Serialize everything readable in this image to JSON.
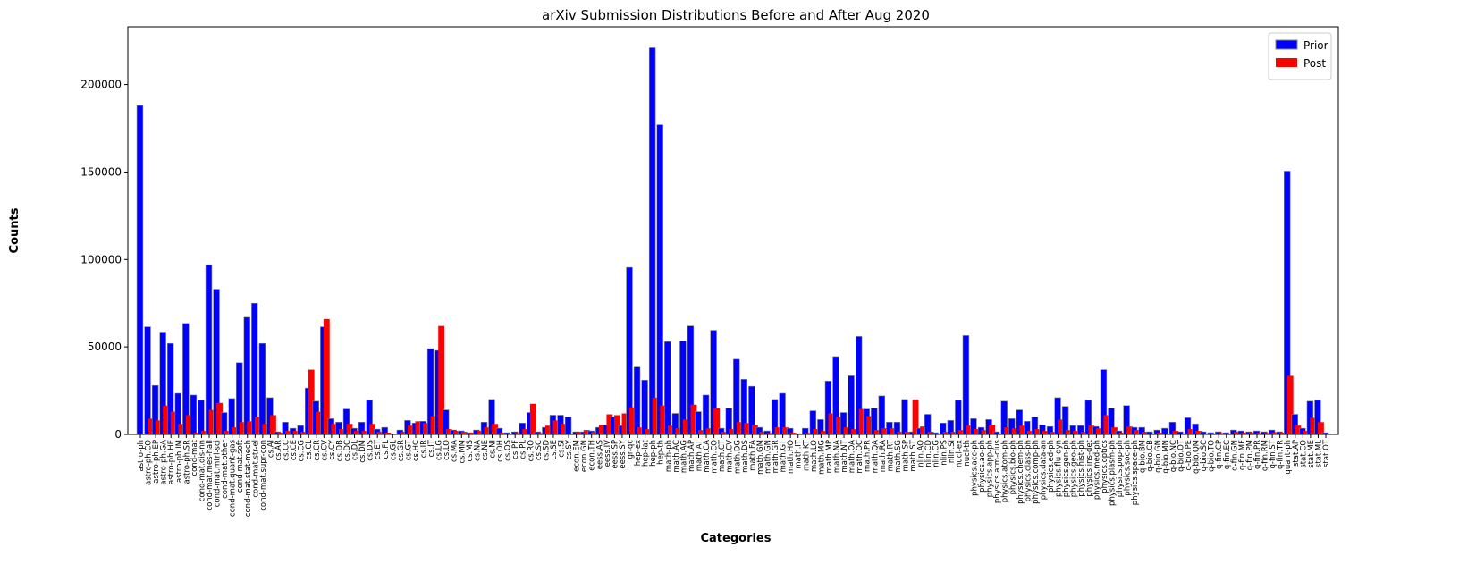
{
  "chart_data": {
    "type": "bar",
    "title": "arXiv Submission Distributions Before and After Aug 2020",
    "x_label": "Categories",
    "y_label": "Counts",
    "categories": [
      "astro-ph",
      "astro-ph.CO",
      "astro-ph.EP",
      "astro-ph.GA",
      "astro-ph.HE",
      "astro-ph.IM",
      "astro-ph.SR",
      "cond-mat",
      "cond-mat.dis-nn",
      "cond-mat.mes-hall",
      "cond-mat.mtrl-sci",
      "cond-mat.other",
      "cond-mat.quant-gas",
      "cond-mat.soft",
      "cond-mat.stat-mech",
      "cond-mat.str-el",
      "cond-mat.supr-con",
      "cs.AI",
      "cs.AR",
      "cs.CC",
      "cs.CE",
      "cs.CG",
      "cs.CL",
      "cs.CR",
      "cs.CV",
      "cs.CY",
      "cs.DB",
      "cs.DC",
      "cs.DL",
      "cs.DM",
      "cs.DS",
      "cs.ET",
      "cs.FL",
      "cs.GL",
      "cs.GR",
      "cs.GT",
      "cs.HC",
      "cs.IR",
      "cs.IT",
      "cs.LG",
      "cs.LO",
      "cs.MA",
      "cs.MM",
      "cs.MS",
      "cs.NA",
      "cs.NE",
      "cs.NI",
      "cs.OH",
      "cs.OS",
      "cs.PF",
      "cs.PL",
      "cs.RO",
      "cs.SC",
      "cs.SD",
      "cs.SE",
      "cs.SI",
      "cs.SY",
      "econ.EM",
      "econ.GN",
      "econ.TH",
      "eess.AS",
      "eess.IV",
      "eess.SP",
      "eess.SY",
      "gr-qc",
      "hep-ex",
      "hep-lat",
      "hep-ph",
      "hep-th",
      "math-ph",
      "math.AC",
      "math.AG",
      "math.AP",
      "math.AT",
      "math.CA",
      "math.CO",
      "math.CT",
      "math.CV",
      "math.DG",
      "math.DS",
      "math.FA",
      "math.GM",
      "math.GN",
      "math.GR",
      "math.GT",
      "math.HO",
      "math.IT",
      "math.KT",
      "math.LO",
      "math.MG",
      "math.MP",
      "math.NA",
      "math.NT",
      "math.OA",
      "math.OC",
      "math.PR",
      "math.QA",
      "math.RA",
      "math.RT",
      "math.SG",
      "math.SP",
      "math.ST",
      "nlin.AO",
      "nlin.CD",
      "nlin.CG",
      "nlin.PS",
      "nlin.SI",
      "nucl-ex",
      "nucl-th",
      "physics.acc-ph",
      "physics.ao-ph",
      "physics.app-ph",
      "physics.atm-clus",
      "physics.atom-ph",
      "physics.bio-ph",
      "physics.chem-ph",
      "physics.class-ph",
      "physics.comp-ph",
      "physics.data-an",
      "physics.ed-ph",
      "physics.flu-dyn",
      "physics.gen-ph",
      "physics.geo-ph",
      "physics.hist-ph",
      "physics.ins-det",
      "physics.med-ph",
      "physics.optics",
      "physics.plasm-ph",
      "physics.pop-ph",
      "physics.soc-ph",
      "physics.space-ph",
      "q-bio.BM",
      "q-bio.CB",
      "q-bio.GN",
      "q-bio.MN",
      "q-bio.NC",
      "q-bio.OT",
      "q-bio.PE",
      "q-bio.QM",
      "q-bio.SC",
      "q-bio.TO",
      "q-fin.CP",
      "q-fin.EC",
      "q-fin.GN",
      "q-fin.MF",
      "q-fin.PM",
      "q-fin.PR",
      "q-fin.RM",
      "q-fin.ST",
      "q-fin.TR",
      "quant-ph",
      "stat.AP",
      "stat.CO",
      "stat.ME",
      "stat.ML",
      "stat.OT"
    ],
    "series": [
      {
        "name": "Prior",
        "color": "#0000ff",
        "values": [
          188000,
          61500,
          28000,
          58500,
          52000,
          23500,
          63500,
          22500,
          19500,
          97000,
          83000,
          12500,
          20500,
          41000,
          67000,
          75000,
          52000,
          21000,
          1500,
          7000,
          3500,
          5000,
          26500,
          19000,
          61500,
          9000,
          7000,
          14500,
          3500,
          7000,
          19500,
          3000,
          4000,
          300,
          2500,
          8000,
          6500,
          7500,
          49000,
          48000,
          14000,
          2500,
          2000,
          1000,
          2500,
          7000,
          20000,
          3500,
          1000,
          1500,
          6500,
          12500,
          1500,
          4000,
          11000,
          11000,
          10000,
          1500,
          1500,
          2000,
          4000,
          5500,
          10000,
          5000,
          95500,
          38500,
          31000,
          221000,
          177000,
          53000,
          12000,
          53500,
          62000,
          13000,
          22500,
          59500,
          3500,
          15000,
          43000,
          31500,
          27500,
          4000,
          2000,
          20000,
          23500,
          3500,
          500,
          3500,
          13500,
          8500,
          30500,
          44500,
          12500,
          33500,
          56000,
          14500,
          15000,
          22000,
          7000,
          7000,
          20000,
          1500,
          3500,
          11500,
          1000,
          6500,
          8000,
          19500,
          56500,
          9000,
          4000,
          8500,
          1500,
          19000,
          9000,
          14000,
          7500,
          10000,
          5500,
          4500,
          21000,
          16000,
          5000,
          5000,
          19500,
          4500,
          37000,
          15000,
          2000,
          16500,
          4000,
          4000,
          1500,
          2500,
          3500,
          7000,
          1500,
          9500,
          6000,
          1500,
          1000,
          1500,
          1000,
          2500,
          2000,
          1500,
          2000,
          1500,
          2500,
          1500,
          150500,
          11500,
          3500,
          19000,
          19500,
          1000
        ]
      },
      {
        "name": "Post",
        "color": "#ff0000",
        "values": [
          500,
          9000,
          8000,
          16500,
          13000,
          6000,
          11000,
          1000,
          2000,
          14000,
          18000,
          2000,
          4000,
          7000,
          7500,
          10000,
          6000,
          11000,
          1000,
          2000,
          2000,
          1500,
          37000,
          13000,
          66000,
          6000,
          3000,
          6000,
          2000,
          2000,
          6000,
          1500,
          1000,
          100,
          1500,
          5000,
          7500,
          6500,
          10500,
          62000,
          3000,
          2000,
          1500,
          1000,
          2000,
          4000,
          6000,
          1000,
          500,
          800,
          3000,
          17500,
          800,
          5000,
          8000,
          6000,
          300,
          1500,
          2500,
          1500,
          5500,
          11500,
          11000,
          12000,
          15500,
          4000,
          3000,
          21000,
          16500,
          5000,
          3500,
          8500,
          17000,
          2500,
          3500,
          15000,
          1500,
          3000,
          7000,
          6500,
          5500,
          1500,
          800,
          4000,
          4000,
          1000,
          100,
          800,
          3000,
          2000,
          12000,
          10000,
          4000,
          3000,
          14500,
          10500,
          2500,
          3500,
          3500,
          1500,
          1500,
          20000,
          4500,
          1500,
          300,
          1500,
          1500,
          2500,
          5000,
          3000,
          2500,
          5500,
          500,
          4000,
          3500,
          5000,
          2000,
          3000,
          2000,
          1500,
          8500,
          2500,
          2000,
          1500,
          5000,
          3500,
          11000,
          4000,
          1000,
          4500,
          2500,
          1500,
          300,
          1000,
          500,
          2000,
          500,
          3000,
          2000,
          300,
          500,
          800,
          500,
          1500,
          1000,
          1000,
          800,
          800,
          1200,
          1000,
          33500,
          5000,
          2000,
          9500,
          7000,
          500
        ]
      }
    ],
    "ylim": [
      0,
      233000
    ],
    "yticks": [
      0,
      50000,
      100000,
      150000,
      200000
    ],
    "grid": false,
    "legend": "upper right",
    "edge_color": "#888888"
  }
}
